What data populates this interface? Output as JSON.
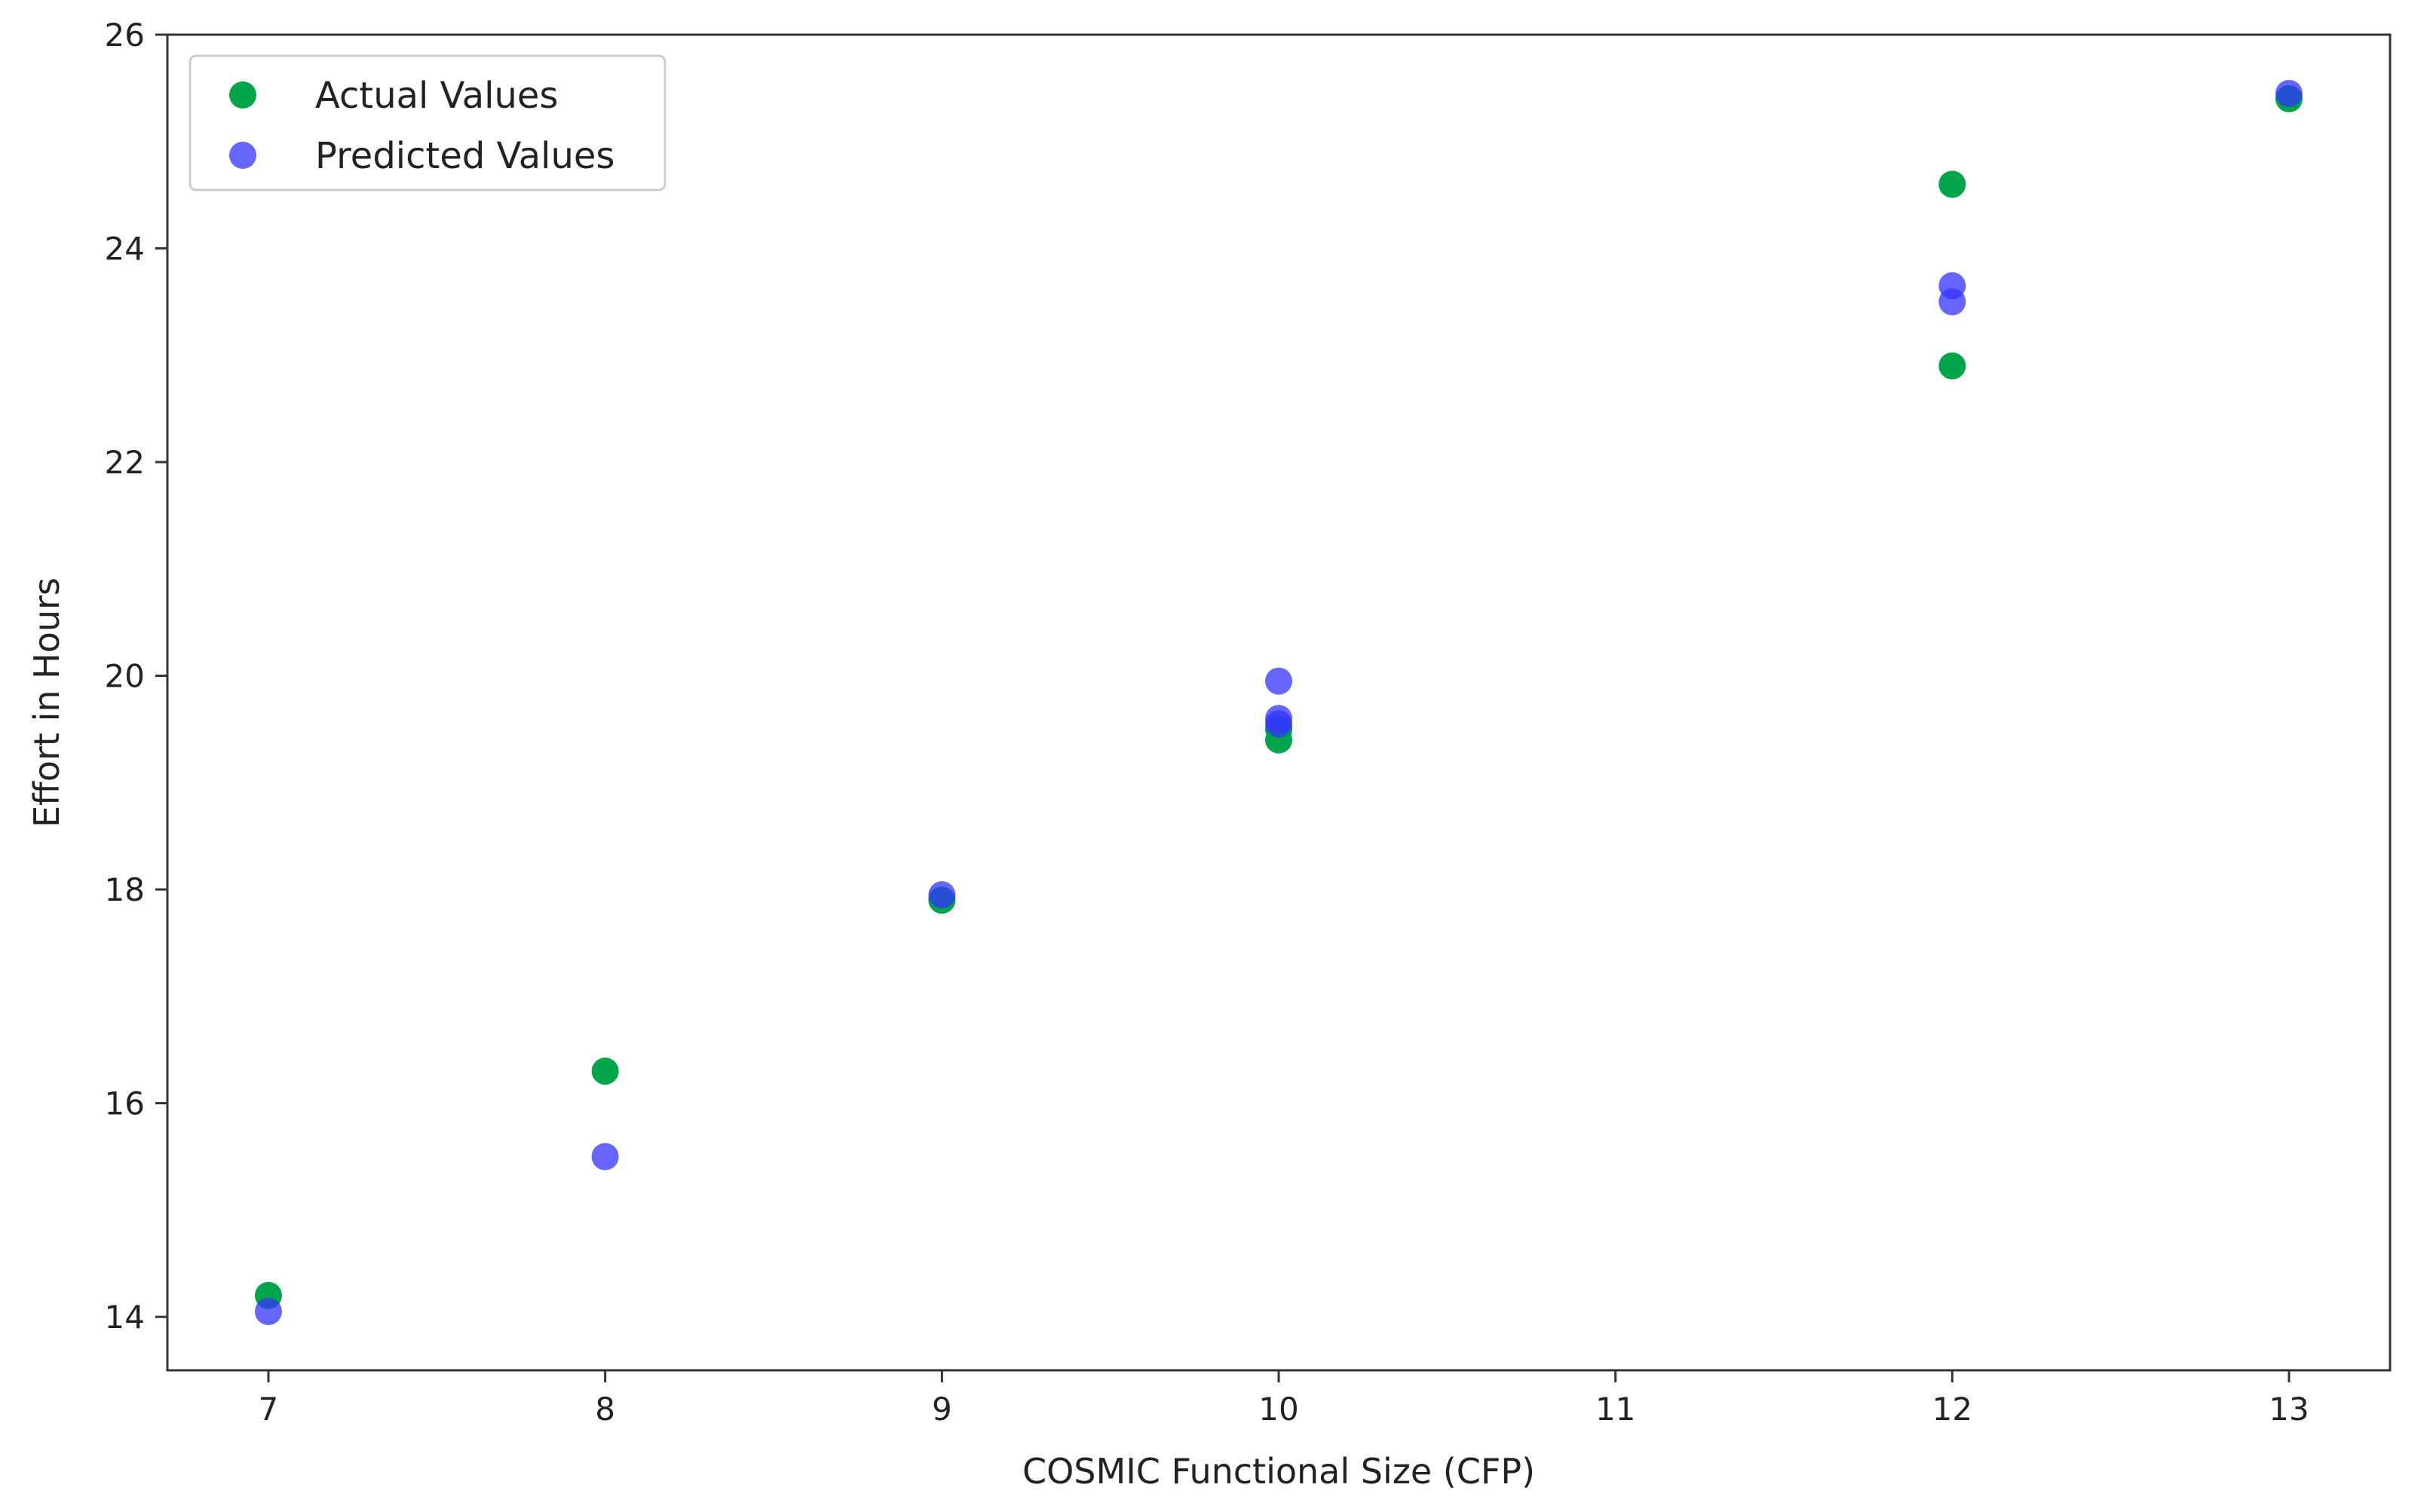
{
  "chart_data": {
    "type": "scatter",
    "title": "",
    "xlabel": "COSMIC Functional Size (CFP)",
    "ylabel": "Effort in Hours",
    "xlim": [
      6.7,
      13.3
    ],
    "ylim": [
      13.5,
      26.0
    ],
    "xticks": [
      7,
      8,
      9,
      10,
      11,
      12,
      13
    ],
    "yticks": [
      14,
      16,
      18,
      20,
      22,
      24,
      26
    ],
    "grid": false,
    "legend_position": "upper-left",
    "series": [
      {
        "name": "Actual Values",
        "color": "#00a44a",
        "alpha": 1.0,
        "points": [
          {
            "x": 7,
            "y": 14.2
          },
          {
            "x": 8,
            "y": 16.3
          },
          {
            "x": 9,
            "y": 17.9
          },
          {
            "x": 10,
            "y": 19.4
          },
          {
            "x": 10,
            "y": 19.5
          },
          {
            "x": 12,
            "y": 24.6
          },
          {
            "x": 12,
            "y": 22.9
          },
          {
            "x": 13,
            "y": 25.4
          }
        ]
      },
      {
        "name": "Predicted Values",
        "color": "#3333ff",
        "alpha": 0.75,
        "points": [
          {
            "x": 7,
            "y": 14.05
          },
          {
            "x": 8,
            "y": 15.5
          },
          {
            "x": 9,
            "y": 17.95
          },
          {
            "x": 10,
            "y": 19.95
          },
          {
            "x": 10,
            "y": 19.6
          },
          {
            "x": 10,
            "y": 19.55
          },
          {
            "x": 12,
            "y": 23.65
          },
          {
            "x": 12,
            "y": 23.5
          },
          {
            "x": 13,
            "y": 25.45
          }
        ]
      }
    ]
  }
}
